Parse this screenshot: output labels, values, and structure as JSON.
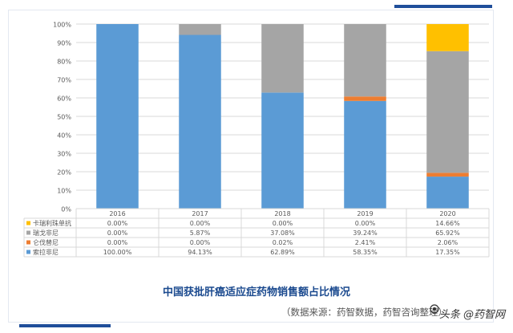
{
  "chart_data": {
    "type": "bar",
    "stacked": true,
    "percent_stacked": true,
    "categories": [
      "2016",
      "2017",
      "2018",
      "2019",
      "2020"
    ],
    "series": [
      {
        "name": "索拉非尼",
        "color": "#5b9bd5",
        "values": [
          100.0,
          94.13,
          62.89,
          58.35,
          17.35
        ],
        "labels": [
          "100.00%",
          "94.13%",
          "62.89%",
          "58.35%",
          "17.35%"
        ]
      },
      {
        "name": "仑伐替尼",
        "color": "#ed7d31",
        "values": [
          0.0,
          0.0,
          0.02,
          2.41,
          2.06
        ],
        "labels": [
          "0.00%",
          "0.00%",
          "0.02%",
          "2.41%",
          "2.06%"
        ]
      },
      {
        "name": "瑞戈非尼",
        "color": "#a5a5a5",
        "values": [
          0.0,
          5.87,
          37.08,
          39.24,
          65.92
        ],
        "labels": [
          "0.00%",
          "5.87%",
          "37.08%",
          "39.24%",
          "65.92%"
        ]
      },
      {
        "name": "卡瑞利珠单抗",
        "color": "#ffc000",
        "values": [
          0.0,
          0.0,
          0.0,
          0.0,
          14.66
        ],
        "labels": [
          "0.00%",
          "0.00%",
          "0.00%",
          "0.00%",
          "14.66%"
        ]
      }
    ],
    "table_rows_order": [
      "卡瑞利珠单抗",
      "瑞戈非尼",
      "仑伐替尼",
      "索拉非尼"
    ],
    "yticks": [
      "0%",
      "10%",
      "20%",
      "30%",
      "40%",
      "50%",
      "60%",
      "70%",
      "80%",
      "90%",
      "100%"
    ],
    "ylim": [
      0,
      100
    ],
    "grid": true,
    "legend": "data-table"
  },
  "title": "中国获批肝癌适应症药物销售额占比情况",
  "source": "（数据来源：药智数据，药智咨询整理）",
  "watermark": "头条 @药智网"
}
